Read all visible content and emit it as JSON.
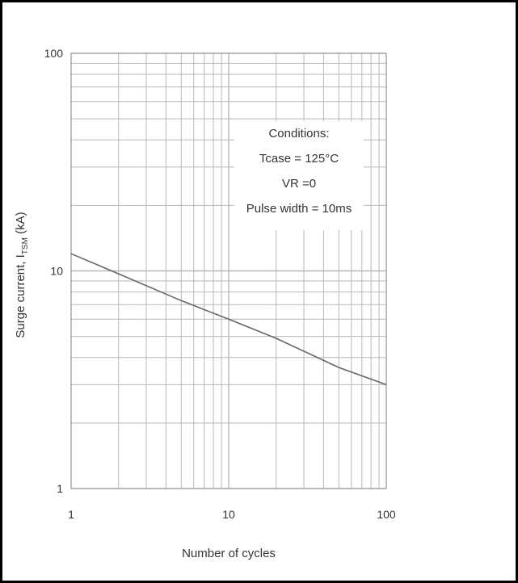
{
  "chart_data": {
    "type": "line",
    "title": "",
    "xlabel": "Number of cycles",
    "ylabel": "Surge current, I",
    "ylabel_sub": "TSM",
    "ylabel_tail": " (kA)",
    "xscale": "log",
    "yscale": "log",
    "xlim": [
      1,
      100
    ],
    "ylim": [
      1,
      100
    ],
    "grid": true,
    "x_ticks": [
      "1",
      "10",
      "100"
    ],
    "y_ticks": [
      "1",
      "10",
      "100"
    ],
    "series": [
      {
        "x": [
          1,
          2,
          5,
          10,
          20,
          50,
          100
        ],
        "y": [
          12,
          9.7,
          7.3,
          6,
          4.9,
          3.6,
          3
        ]
      }
    ],
    "annotation": [
      "Conditions:",
      "Tcase = 125°C",
      "VR =0",
      "Pulse width = 10ms"
    ]
  },
  "colors": {
    "grid": "#b8b8b8",
    "line": "#666666",
    "text": "#333333",
    "frame": "#000000"
  }
}
